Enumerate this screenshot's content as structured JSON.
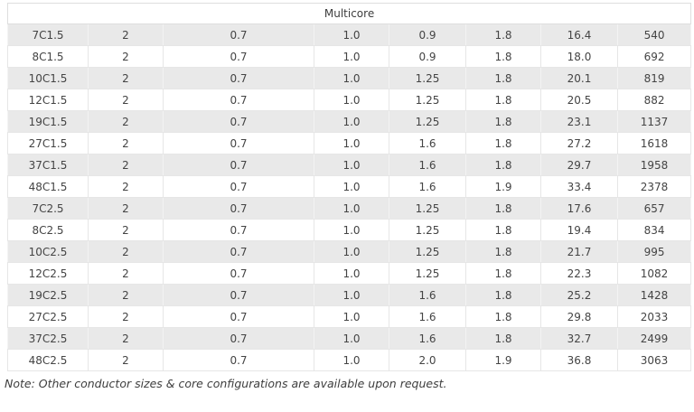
{
  "table": {
    "header": "Multicore",
    "rows": [
      [
        "7C1.5",
        "2",
        "0.7",
        "1.0",
        "0.9",
        "1.8",
        "16.4",
        "540"
      ],
      [
        "8C1.5",
        "2",
        "0.7",
        "1.0",
        "0.9",
        "1.8",
        "18.0",
        "692"
      ],
      [
        "10C1.5",
        "2",
        "0.7",
        "1.0",
        "1.25",
        "1.8",
        "20.1",
        "819"
      ],
      [
        "12C1.5",
        "2",
        "0.7",
        "1.0",
        "1.25",
        "1.8",
        "20.5",
        "882"
      ],
      [
        "19C1.5",
        "2",
        "0.7",
        "1.0",
        "1.25",
        "1.8",
        "23.1",
        "1137"
      ],
      [
        "27C1.5",
        "2",
        "0.7",
        "1.0",
        "1.6",
        "1.8",
        "27.2",
        "1618"
      ],
      [
        "37C1.5",
        "2",
        "0.7",
        "1.0",
        "1.6",
        "1.8",
        "29.7",
        "1958"
      ],
      [
        "48C1.5",
        "2",
        "0.7",
        "1.0",
        "1.6",
        "1.9",
        "33.4",
        "2378"
      ],
      [
        "7C2.5",
        "2",
        "0.7",
        "1.0",
        "1.25",
        "1.8",
        "17.6",
        "657"
      ],
      [
        "8C2.5",
        "2",
        "0.7",
        "1.0",
        "1.25",
        "1.8",
        "19.4",
        "834"
      ],
      [
        "10C2.5",
        "2",
        "0.7",
        "1.0",
        "1.25",
        "1.8",
        "21.7",
        "995"
      ],
      [
        "12C2.5",
        "2",
        "0.7",
        "1.0",
        "1.25",
        "1.8",
        "22.3",
        "1082"
      ],
      [
        "19C2.5",
        "2",
        "0.7",
        "1.0",
        "1.6",
        "1.8",
        "25.2",
        "1428"
      ],
      [
        "27C2.5",
        "2",
        "0.7",
        "1.0",
        "1.6",
        "1.8",
        "29.8",
        "2033"
      ],
      [
        "37C2.5",
        "2",
        "0.7",
        "1.0",
        "1.6",
        "1.8",
        "32.7",
        "2499"
      ],
      [
        "48C2.5",
        "2",
        "0.7",
        "1.0",
        "2.0",
        "1.9",
        "36.8",
        "3063"
      ]
    ]
  },
  "note": "Note: Other conductor sizes & core configurations are available upon request.",
  "colors": {
    "row_shaded": "#e9e9e9",
    "row_plain": "#ffffff",
    "border": "#e0e0e0",
    "text": "#444444"
  }
}
